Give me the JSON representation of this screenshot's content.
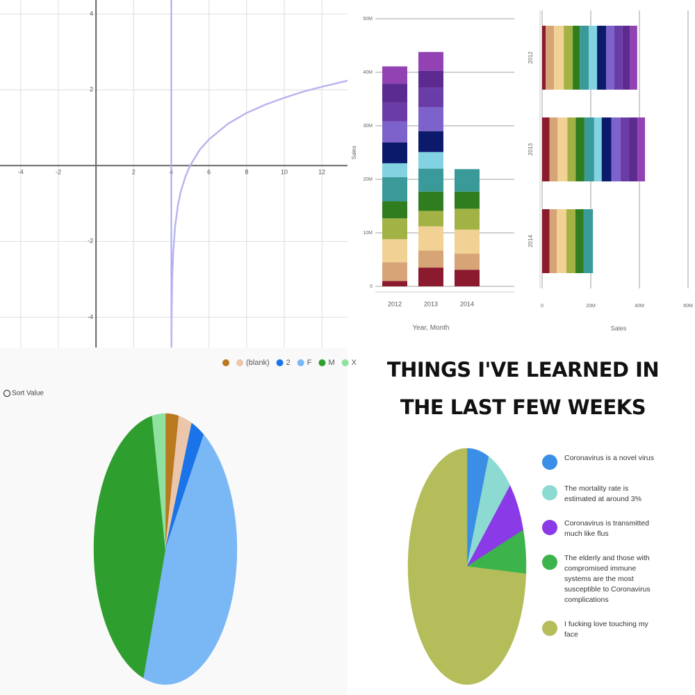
{
  "chart_data": [
    {
      "type": "line",
      "x": [
        4.008,
        4.02,
        4.05,
        4.1,
        4.2,
        4.35,
        4.5,
        4.75,
        5,
        5.5,
        6,
        7,
        8,
        9,
        10,
        11,
        12,
        13.36
      ],
      "series": [
        {
          "color": "#b9b5f0",
          "values": [
            -4.83,
            -3.91,
            -3.0,
            -2.3,
            -1.61,
            -1.05,
            -0.69,
            -0.29,
            0,
            0.41,
            0.69,
            1.1,
            1.39,
            1.61,
            1.79,
            1.95,
            2.08,
            2.24
          ]
        }
      ],
      "xlim": [
        -5.1,
        13.36
      ],
      "ylim": [
        -4.8,
        4.37
      ],
      "xticks": [
        -4,
        -2,
        2,
        4,
        6,
        8,
        10,
        12
      ],
      "yticks": [
        4,
        2,
        -2,
        -4
      ],
      "grid": true,
      "vlines": [
        4
      ],
      "vline_color": "#a9a5ee"
    },
    {
      "type": "bar",
      "stacked": true,
      "categories": [
        "2012",
        "2013",
        "2014"
      ],
      "series": [
        {
          "color": "#8b1a2e",
          "values": [
            1,
            3.5,
            3.1
          ]
        },
        {
          "color": "#d6a477",
          "values": [
            3.5,
            3.2,
            3.0
          ]
        },
        {
          "color": "#f1d294",
          "values": [
            4.3,
            4.5,
            4.5
          ]
        },
        {
          "color": "#a3b245",
          "values": [
            3.9,
            2.9,
            3.9
          ]
        },
        {
          "color": "#2f7d1f",
          "values": [
            3.2,
            3.6,
            3.2
          ]
        },
        {
          "color": "#3a9a9a",
          "values": [
            4.5,
            4.3,
            4.2
          ]
        },
        {
          "color": "#82d2e2",
          "values": [
            2.6,
            3.1,
            null
          ]
        },
        {
          "color": "#0b1a6b",
          "values": [
            3.9,
            3.9,
            null
          ]
        },
        {
          "color": "#7c62ca",
          "values": [
            3.9,
            4.5,
            null
          ]
        },
        {
          "color": "#6a3ca8",
          "values": [
            3.5,
            3.6,
            null
          ]
        },
        {
          "color": "#5b2b90",
          "values": [
            3.6,
            3.2,
            null
          ]
        },
        {
          "color": "#9242b2",
          "values": [
            3.2,
            3.5,
            null
          ]
        }
      ],
      "ylim": [
        0,
        50
      ],
      "yticks": [
        0,
        {
          "value": 10,
          "label": "10M"
        },
        {
          "value": 20,
          "label": "20M"
        },
        {
          "value": 30,
          "label": "30M"
        },
        {
          "value": 40,
          "label": "40M"
        },
        {
          "value": 50,
          "label": "50M"
        }
      ],
      "grid": true,
      "xlabel": "Year, Month",
      "ylabel": "Sales"
    },
    {
      "type": "bar",
      "stacked": true,
      "horizontal": true,
      "categories": [
        "2012",
        "2013",
        "2014"
      ],
      "series": [
        {
          "color": "#8b1a2e",
          "values": [
            1.5,
            3.0,
            3.0
          ]
        },
        {
          "color": "#d6a477",
          "values": [
            3.4,
            3.4,
            3.0
          ]
        },
        {
          "color": "#f1d294",
          "values": [
            4.0,
            4.0,
            4.0
          ]
        },
        {
          "color": "#a3b245",
          "values": [
            3.7,
            3.4,
            3.7
          ]
        },
        {
          "color": "#2f7d1f",
          "values": [
            2.9,
            3.6,
            3.4
          ]
        },
        {
          "color": "#3a9a9a",
          "values": [
            3.7,
            4.0,
            3.8
          ]
        },
        {
          "color": "#82d2e2",
          "values": [
            3.4,
            3.1,
            null
          ]
        },
        {
          "color": "#0b1a6b",
          "values": [
            3.7,
            4.0,
            null
          ]
        },
        {
          "color": "#7c62ca",
          "values": [
            3.4,
            3.7,
            null
          ]
        },
        {
          "color": "#6a3ca8",
          "values": [
            3.4,
            3.4,
            null
          ]
        },
        {
          "color": "#5b2b90",
          "values": [
            2.9,
            3.6,
            null
          ]
        },
        {
          "color": "#9242b2",
          "values": [
            3.1,
            3.1,
            null
          ]
        }
      ],
      "xlim": [
        0,
        60
      ],
      "xticks": [
        0,
        {
          "value": 20,
          "label": "20M"
        },
        {
          "value": 40,
          "label": "40M"
        },
        {
          "value": 60,
          "label": "60M"
        }
      ],
      "grid": true,
      "xlabel": "Sales"
    },
    {
      "type": "pie",
      "categories": [
        null,
        "(blank)",
        "2",
        "F",
        "M",
        "X"
      ],
      "values": [
        3,
        3,
        3,
        46,
        42,
        3
      ],
      "colors": [
        "#b8791f",
        "#ebc6aa",
        "#1a73e8",
        "#7ab8f5",
        "#2e9e2e",
        "#90e0a0"
      ],
      "legend": "top",
      "annotation": "Sort Value"
    },
    {
      "type": "pie",
      "title": "THINGS I'VE LEARNED IN THE LAST FEW WEEKS",
      "categories": [
        "Coronavirus is a novel virus",
        "The mortality rate is estimated at around 3%",
        "Coronavirus is transmitted much like flus",
        "The elderly and those with compromised immune systems are the most susceptible to Coronavirus complications",
        "I fucking love touching my face"
      ],
      "values": [
        6,
        7,
        7,
        6,
        74
      ],
      "colors": [
        "#3a8ee6",
        "#8cdad2",
        "#8a3ae6",
        "#3cb44b",
        "#b5bd5a"
      ],
      "legend": "right"
    }
  ]
}
